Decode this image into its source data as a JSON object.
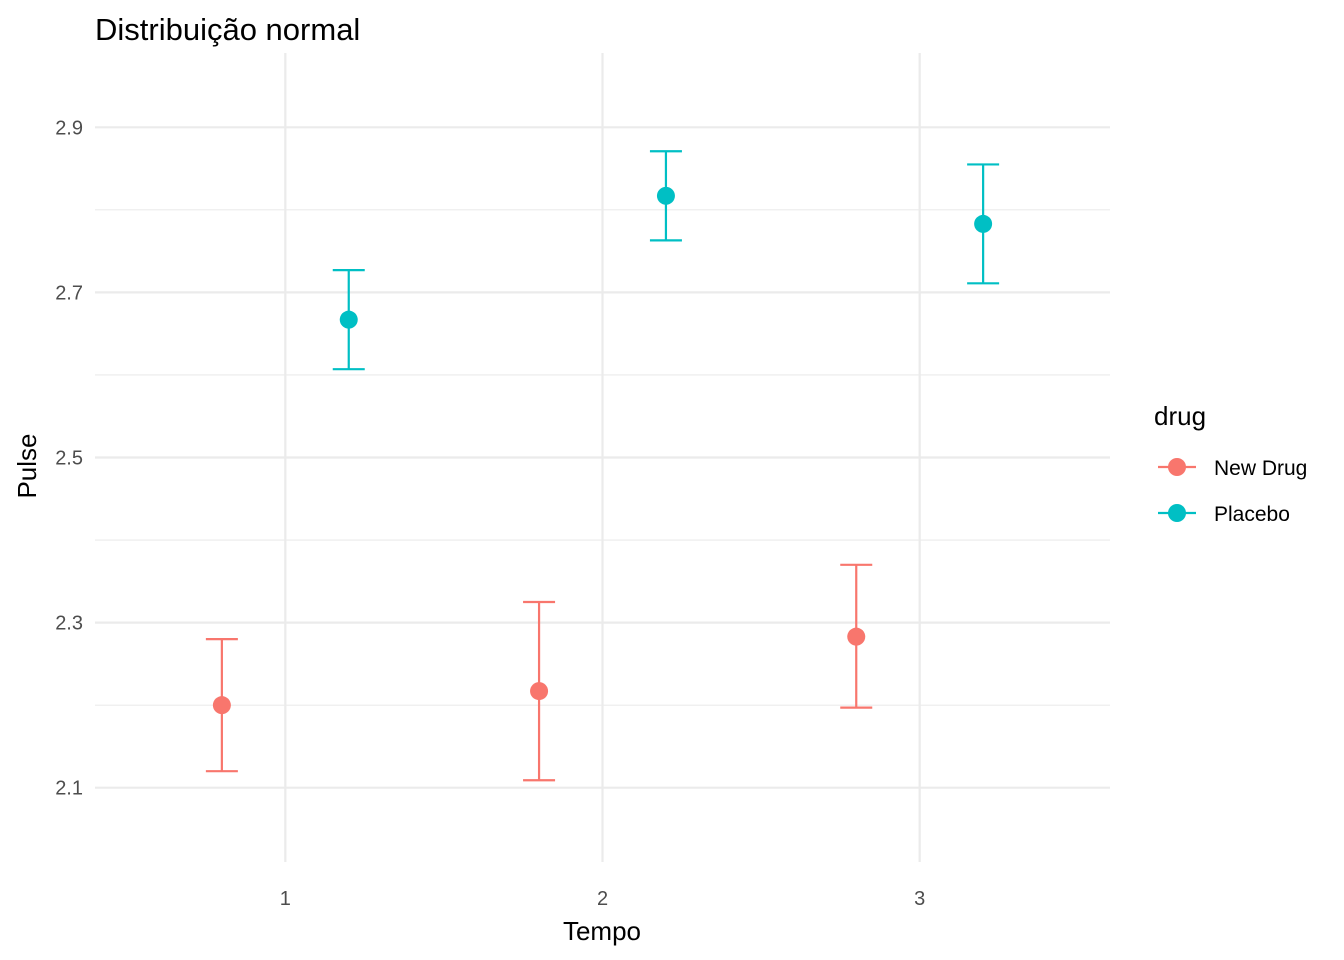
{
  "chart_data": {
    "type": "scatter",
    "title": "Distribuição normal",
    "xlabel": "Tempo",
    "ylabel": "Pulse",
    "xlim": [
      0.4,
      3.6
    ],
    "ylim": [
      2.1,
      2.9
    ],
    "x_ticks": [
      1,
      2,
      3
    ],
    "y_ticks": [
      2.1,
      2.3,
      2.5,
      2.7,
      2.9
    ],
    "y_minor_ticks": [
      2.2,
      2.4,
      2.6,
      2.8
    ],
    "grid": true,
    "dodge": 0.2,
    "legend": {
      "title": "drug",
      "position": "right"
    },
    "series": [
      {
        "name": "New Drug",
        "color": "#F8766D",
        "points": [
          {
            "x": 1,
            "y": 2.2,
            "ymin": 2.12,
            "ymax": 2.28
          },
          {
            "x": 2,
            "y": 2.217,
            "ymin": 2.109,
            "ymax": 2.325
          },
          {
            "x": 3,
            "y": 2.283,
            "ymin": 2.197,
            "ymax": 2.37
          }
        ]
      },
      {
        "name": "Placebo",
        "color": "#00BFC4",
        "points": [
          {
            "x": 1,
            "y": 2.667,
            "ymin": 2.607,
            "ymax": 2.727
          },
          {
            "x": 2,
            "y": 2.817,
            "ymin": 2.763,
            "ymax": 2.871
          },
          {
            "x": 3,
            "y": 2.783,
            "ymin": 2.711,
            "ymax": 2.855
          }
        ]
      }
    ]
  }
}
